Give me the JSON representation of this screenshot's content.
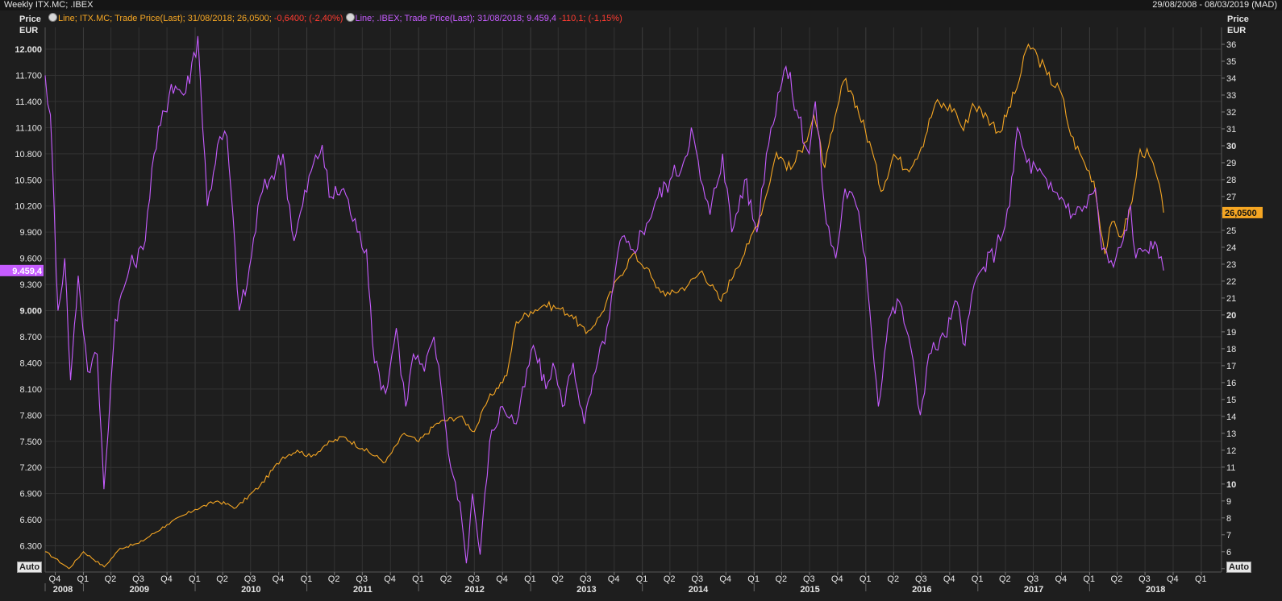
{
  "header": {
    "title": "Weekly ITX.MC; .IBEX",
    "date_range": "29/08/2008 - 08/03/2019 (MAD)"
  },
  "legend": {
    "itx_line": "Line; ITX.MC; Trade Price(Last); 31/08/2018; 26,0500;",
    "itx_change": "-0,6400; (-2,40%)",
    "ibex_line": "Line; .IBEX; Trade Price(Last); 31/08/2018; 9.459,4",
    "ibex_change": "-110,1; (-1,15%)"
  },
  "axes": {
    "left_head_1": "Price",
    "left_head_2": "EUR",
    "right_head_1": "Price",
    "right_head_2": "EUR",
    "auto_label": "Auto"
  },
  "colors": {
    "background": "#1e1e1e",
    "grid": "#333333",
    "itx": "#f5a623",
    "ibex": "#c65cff",
    "text": "#e6e6e6"
  },
  "chart_data": {
    "type": "line",
    "x_start": "2008-08-29",
    "x_end": "2019-03-08",
    "left_axis": {
      "ylim": [
        6000,
        12250
      ],
      "ticks": [
        6300,
        6600,
        6900,
        7200,
        7500,
        7800,
        8100,
        8400,
        8700,
        9000,
        9300,
        9600,
        9900,
        10200,
        10500,
        10800,
        11100,
        11400,
        11700,
        12000
      ],
      "tick_labels": [
        "6.300",
        "6.600",
        "6.900",
        "7.200",
        "7.500",
        "7.800",
        "8.100",
        "8.400",
        "8.700",
        "9.000",
        "9.300",
        "9.600",
        "9.900",
        "10.200",
        "10.500",
        "10.800",
        "11.100",
        "11.400",
        "11.700",
        "12.000"
      ],
      "last_value_label": "9.459,4"
    },
    "right_axis": {
      "ylim": [
        4.8,
        37
      ],
      "ticks": [
        5,
        6,
        7,
        8,
        9,
        10,
        11,
        12,
        13,
        14,
        15,
        16,
        17,
        18,
        19,
        20,
        21,
        22,
        23,
        24,
        25,
        26,
        27,
        28,
        29,
        30,
        31,
        32,
        33,
        34,
        35,
        36
      ],
      "tick_labels": [
        "5",
        "6",
        "7",
        "8",
        "9",
        "10",
        "11",
        "12",
        "13",
        "14",
        "15",
        "16",
        "17",
        "18",
        "19",
        "20",
        "21",
        "22",
        "23",
        "24",
        "25",
        "26",
        "27",
        "28",
        "29",
        "30",
        "31",
        "32",
        "33",
        "34",
        "35",
        "36"
      ],
      "bold_ticks": [
        10,
        20,
        30
      ],
      "last_value_label": "26,0500"
    },
    "x_quarters": [
      {
        "label": "Q4",
        "date": "2008-10-01"
      },
      {
        "label": "Q1",
        "date": "2009-01-01"
      },
      {
        "label": "Q2",
        "date": "2009-04-01"
      },
      {
        "label": "Q3",
        "date": "2009-07-01"
      },
      {
        "label": "Q4",
        "date": "2009-10-01"
      },
      {
        "label": "Q1",
        "date": "2010-01-01"
      },
      {
        "label": "Q2",
        "date": "2010-04-01"
      },
      {
        "label": "Q3",
        "date": "2010-07-01"
      },
      {
        "label": "Q4",
        "date": "2010-10-01"
      },
      {
        "label": "Q1",
        "date": "2011-01-01"
      },
      {
        "label": "Q2",
        "date": "2011-04-01"
      },
      {
        "label": "Q3",
        "date": "2011-07-01"
      },
      {
        "label": "Q4",
        "date": "2011-10-01"
      },
      {
        "label": "Q1",
        "date": "2012-01-01"
      },
      {
        "label": "Q2",
        "date": "2012-04-01"
      },
      {
        "label": "Q3",
        "date": "2012-07-01"
      },
      {
        "label": "Q4",
        "date": "2012-10-01"
      },
      {
        "label": "Q1",
        "date": "2013-01-01"
      },
      {
        "label": "Q2",
        "date": "2013-04-01"
      },
      {
        "label": "Q3",
        "date": "2013-07-01"
      },
      {
        "label": "Q4",
        "date": "2013-10-01"
      },
      {
        "label": "Q1",
        "date": "2014-01-01"
      },
      {
        "label": "Q2",
        "date": "2014-04-01"
      },
      {
        "label": "Q3",
        "date": "2014-07-01"
      },
      {
        "label": "Q4",
        "date": "2014-10-01"
      },
      {
        "label": "Q1",
        "date": "2015-01-01"
      },
      {
        "label": "Q2",
        "date": "2015-04-01"
      },
      {
        "label": "Q3",
        "date": "2015-07-01"
      },
      {
        "label": "Q4",
        "date": "2015-10-01"
      },
      {
        "label": "Q1",
        "date": "2016-01-01"
      },
      {
        "label": "Q2",
        "date": "2016-04-01"
      },
      {
        "label": "Q3",
        "date": "2016-07-01"
      },
      {
        "label": "Q4",
        "date": "2016-10-01"
      },
      {
        "label": "Q1",
        "date": "2017-01-01"
      },
      {
        "label": "Q2",
        "date": "2017-04-01"
      },
      {
        "label": "Q3",
        "date": "2017-07-01"
      },
      {
        "label": "Q4",
        "date": "2017-10-01"
      },
      {
        "label": "Q1",
        "date": "2018-01-01"
      },
      {
        "label": "Q2",
        "date": "2018-04-01"
      },
      {
        "label": "Q3",
        "date": "2018-07-01"
      },
      {
        "label": "Q4",
        "date": "2018-10-01"
      },
      {
        "label": "Q1",
        "date": "2019-01-01"
      }
    ],
    "x_years": [
      {
        "label": "2008",
        "date": "2008-08-29"
      },
      {
        "label": "2009",
        "date": "2009-01-01"
      },
      {
        "label": "2010",
        "date": "2010-01-01"
      },
      {
        "label": "2011",
        "date": "2011-01-01"
      },
      {
        "label": "2012",
        "date": "2012-01-01"
      },
      {
        "label": "2013",
        "date": "2013-01-01"
      },
      {
        "label": "2014",
        "date": "2014-01-01"
      },
      {
        "label": "2015",
        "date": "2015-01-01"
      },
      {
        "label": "2016",
        "date": "2016-01-01"
      },
      {
        "label": "2017",
        "date": "2017-01-01"
      },
      {
        "label": "2018",
        "date": "2018-01-01"
      }
    ],
    "series": [
      {
        "name": "ITX.MC",
        "axis": "right",
        "points": [
          [
            "2008-08-29",
            6.0
          ],
          [
            "2008-10-01",
            5.6
          ],
          [
            "2008-11-15",
            5.0
          ],
          [
            "2009-01-01",
            6.0
          ],
          [
            "2009-03-10",
            5.1
          ],
          [
            "2009-05-01",
            6.2
          ],
          [
            "2009-07-01",
            6.5
          ],
          [
            "2009-10-01",
            7.6
          ],
          [
            "2010-01-01",
            8.5
          ],
          [
            "2010-03-15",
            9.0
          ],
          [
            "2010-05-15",
            8.6
          ],
          [
            "2010-08-01",
            9.9
          ],
          [
            "2010-10-15",
            11.6
          ],
          [
            "2010-12-01",
            12.0
          ],
          [
            "2011-01-15",
            11.6
          ],
          [
            "2011-03-01",
            12.3
          ],
          [
            "2011-05-01",
            12.8
          ],
          [
            "2011-07-01",
            12.1
          ],
          [
            "2011-09-15",
            11.3
          ],
          [
            "2011-11-15",
            13.0
          ],
          [
            "2012-01-01",
            12.5
          ],
          [
            "2012-03-01",
            13.6
          ],
          [
            "2012-05-15",
            14.0
          ],
          [
            "2012-07-01",
            13.1
          ],
          [
            "2012-08-15",
            15.0
          ],
          [
            "2012-10-15",
            16.4
          ],
          [
            "2012-11-15",
            19.6
          ],
          [
            "2013-01-01",
            20.2
          ],
          [
            "2013-02-15",
            20.6
          ],
          [
            "2013-04-01",
            20.4
          ],
          [
            "2013-05-15",
            20.0
          ],
          [
            "2013-07-01",
            18.9
          ],
          [
            "2013-08-15",
            19.9
          ],
          [
            "2013-10-15",
            22.2
          ],
          [
            "2013-12-01",
            23.6
          ],
          [
            "2014-01-15",
            22.8
          ],
          [
            "2014-02-15",
            21.6
          ],
          [
            "2014-04-01",
            21.2
          ],
          [
            "2014-06-01",
            21.8
          ],
          [
            "2014-07-15",
            22.6
          ],
          [
            "2014-09-15",
            20.8
          ],
          [
            "2014-11-01",
            22.7
          ],
          [
            "2014-12-15",
            24.2
          ],
          [
            "2015-02-01",
            26.5
          ],
          [
            "2015-03-15",
            29.6
          ],
          [
            "2015-05-01",
            28.6
          ],
          [
            "2015-06-15",
            30.2
          ],
          [
            "2015-07-15",
            31.8
          ],
          [
            "2015-08-20",
            28.7
          ],
          [
            "2015-09-15",
            30.9
          ],
          [
            "2015-10-20",
            33.8
          ],
          [
            "2015-11-20",
            33.0
          ],
          [
            "2016-01-20",
            29.8
          ],
          [
            "2016-02-20",
            27.3
          ],
          [
            "2016-04-01",
            29.5
          ],
          [
            "2016-05-15",
            28.6
          ],
          [
            "2016-06-30",
            29.9
          ],
          [
            "2016-08-15",
            32.5
          ],
          [
            "2016-10-15",
            32.2
          ],
          [
            "2016-11-15",
            30.9
          ],
          [
            "2016-12-15",
            32.5
          ],
          [
            "2017-02-01",
            31.7
          ],
          [
            "2017-03-15",
            30.8
          ],
          [
            "2017-05-15",
            33.8
          ],
          [
            "2017-06-15",
            36.0
          ],
          [
            "2017-07-15",
            35.3
          ],
          [
            "2017-08-15",
            34.2
          ],
          [
            "2017-10-01",
            33.1
          ],
          [
            "2017-11-01",
            30.6
          ],
          [
            "2017-12-15",
            29.0
          ],
          [
            "2018-01-15",
            27.9
          ],
          [
            "2018-02-20",
            23.6
          ],
          [
            "2018-03-15",
            25.5
          ],
          [
            "2018-04-15",
            24.6
          ],
          [
            "2018-05-20",
            26.7
          ],
          [
            "2018-06-15",
            29.8
          ],
          [
            "2018-07-15",
            29.4
          ],
          [
            "2018-08-10",
            28.1
          ],
          [
            "2018-08-31",
            26.05
          ]
        ]
      },
      {
        "name": ".IBEX",
        "axis": "left",
        "points": [
          [
            "2008-08-29",
            11700
          ],
          [
            "2008-09-15",
            11250
          ],
          [
            "2008-10-10",
            9000
          ],
          [
            "2008-11-01",
            9600
          ],
          [
            "2008-11-20",
            8200
          ],
          [
            "2008-12-15",
            9400
          ],
          [
            "2009-01-15",
            8300
          ],
          [
            "2009-02-15",
            8500
          ],
          [
            "2009-03-09",
            6950
          ],
          [
            "2009-04-15",
            8900
          ],
          [
            "2009-06-01",
            9500
          ],
          [
            "2009-07-15",
            9700
          ],
          [
            "2009-08-20",
            10800
          ],
          [
            "2009-10-15",
            11600
          ],
          [
            "2009-12-01",
            11500
          ],
          [
            "2010-01-10",
            12150
          ],
          [
            "2010-02-10",
            10200
          ],
          [
            "2010-03-15",
            10900
          ],
          [
            "2010-04-15",
            11000
          ],
          [
            "2010-05-25",
            9000
          ],
          [
            "2010-06-20",
            9300
          ],
          [
            "2010-08-01",
            10300
          ],
          [
            "2010-09-01",
            10500
          ],
          [
            "2010-10-15",
            10800
          ],
          [
            "2010-11-20",
            9800
          ],
          [
            "2011-01-15",
            10600
          ],
          [
            "2011-02-20",
            10900
          ],
          [
            "2011-03-15",
            10300
          ],
          [
            "2011-05-01",
            10400
          ],
          [
            "2011-06-15",
            9900
          ],
          [
            "2011-07-15",
            9700
          ],
          [
            "2011-08-10",
            8400
          ],
          [
            "2011-09-15",
            8050
          ],
          [
            "2011-10-20",
            8800
          ],
          [
            "2011-11-20",
            7900
          ],
          [
            "2011-12-15",
            8500
          ],
          [
            "2012-01-20",
            8300
          ],
          [
            "2012-02-20",
            8700
          ],
          [
            "2012-03-15",
            8100
          ],
          [
            "2012-04-15",
            7200
          ],
          [
            "2012-05-15",
            6800
          ],
          [
            "2012-06-05",
            6100
          ],
          [
            "2012-06-25",
            6900
          ],
          [
            "2012-07-20",
            6200
          ],
          [
            "2012-08-20",
            7500
          ],
          [
            "2012-10-01",
            7900
          ],
          [
            "2012-11-15",
            7700
          ],
          [
            "2013-01-10",
            8600
          ],
          [
            "2013-02-20",
            8100
          ],
          [
            "2013-03-15",
            8400
          ],
          [
            "2013-04-15",
            7900
          ],
          [
            "2013-05-20",
            8400
          ],
          [
            "2013-06-25",
            7700
          ],
          [
            "2013-08-01",
            8300
          ],
          [
            "2013-09-15",
            8900
          ],
          [
            "2013-10-20",
            9800
          ],
          [
            "2013-12-01",
            9700
          ],
          [
            "2014-01-15",
            10000
          ],
          [
            "2014-02-20",
            10300
          ],
          [
            "2014-04-01",
            10500
          ],
          [
            "2014-05-15",
            10700
          ],
          [
            "2014-06-10",
            11100
          ],
          [
            "2014-07-10",
            10500
          ],
          [
            "2014-08-10",
            10100
          ],
          [
            "2014-09-20",
            10800
          ],
          [
            "2014-10-20",
            9900
          ],
          [
            "2014-12-01",
            10500
          ],
          [
            "2015-01-10",
            9900
          ],
          [
            "2015-02-10",
            10800
          ],
          [
            "2015-03-20",
            11500
          ],
          [
            "2015-04-15",
            11800
          ],
          [
            "2015-05-20",
            11300
          ],
          [
            "2015-06-30",
            10800
          ],
          [
            "2015-07-20",
            11400
          ],
          [
            "2015-08-25",
            10000
          ],
          [
            "2015-09-25",
            9600
          ],
          [
            "2015-10-25",
            10400
          ],
          [
            "2015-12-01",
            10200
          ],
          [
            "2015-12-31",
            9600
          ],
          [
            "2016-02-11",
            7900
          ],
          [
            "2016-03-15",
            8900
          ],
          [
            "2016-04-20",
            9100
          ],
          [
            "2016-05-20",
            8700
          ],
          [
            "2016-06-27",
            7800
          ],
          [
            "2016-07-25",
            8500
          ],
          [
            "2016-09-15",
            8700
          ],
          [
            "2016-10-25",
            9100
          ],
          [
            "2016-11-20",
            8600
          ],
          [
            "2016-12-20",
            9300
          ],
          [
            "2017-01-20",
            9500
          ],
          [
            "2017-03-01",
            9700
          ],
          [
            "2017-04-15",
            10200
          ],
          [
            "2017-05-10",
            11100
          ],
          [
            "2017-06-10",
            10700
          ],
          [
            "2017-07-15",
            10600
          ],
          [
            "2017-08-20",
            10400
          ],
          [
            "2017-10-01",
            10300
          ],
          [
            "2017-11-15",
            10100
          ],
          [
            "2017-12-15",
            10200
          ],
          [
            "2018-01-20",
            10400
          ],
          [
            "2018-02-10",
            9700
          ],
          [
            "2018-03-20",
            9500
          ],
          [
            "2018-04-20",
            9800
          ],
          [
            "2018-05-15",
            10200
          ],
          [
            "2018-06-01",
            9600
          ],
          [
            "2018-07-01",
            9700
          ],
          [
            "2018-07-20",
            9800
          ],
          [
            "2018-08-15",
            9600
          ],
          [
            "2018-08-31",
            9459.4
          ]
        ]
      }
    ]
  }
}
